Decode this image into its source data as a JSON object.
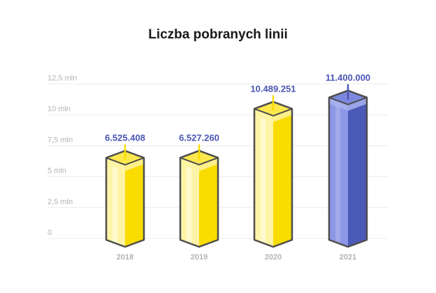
{
  "chart_data": {
    "type": "bar",
    "title": "Liczba pobranych linii",
    "categories": [
      "2018",
      "2019",
      "2020",
      "2021"
    ],
    "values": [
      6525408,
      6527260,
      10489251,
      11400000
    ],
    "value_labels": [
      "6.525.408",
      "6.527.260",
      "10.489.251",
      "11.400.000"
    ],
    "y_ticks": [
      {
        "value": 0,
        "label": "0"
      },
      {
        "value": 2500000,
        "label": "2,5 mln"
      },
      {
        "value": 5000000,
        "label": "5 mln"
      },
      {
        "value": 7500000,
        "label": "7,5 mln"
      },
      {
        "value": 10000000,
        "label": "10 mln"
      },
      {
        "value": 12500000,
        "label": "12,5 mln"
      }
    ],
    "ylim": [
      0,
      12500000
    ],
    "xlabel": "",
    "ylabel": "",
    "grid": true,
    "highlight_index": 3,
    "colors": {
      "title": "#1a1a1a",
      "value_label": "#4a55b5",
      "tick": "#b3b3b3",
      "grid": "#ececec",
      "outline": "#4d4d4d",
      "yellow_front": "#f9dc00",
      "yellow_side": "#fef4a8",
      "yellow_top": "#fde84d",
      "yellow_band": "#fff3a0",
      "blue_front": "#4b59b7",
      "blue_side": "#8d97e6",
      "blue_top": "#7c87de",
      "blue_band": "#a9b1f0",
      "pin_yellow": "#f9dc00",
      "pin_blue": "#4a55b5"
    }
  }
}
